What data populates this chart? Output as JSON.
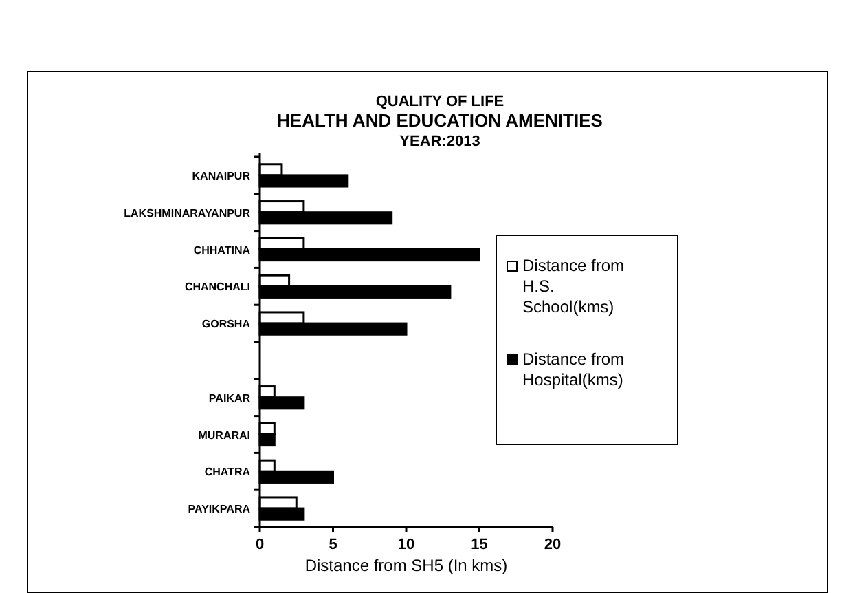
{
  "chart_data": {
    "type": "bar",
    "orientation": "horizontal",
    "title": "QUALITY OF LIFE",
    "subtitle": "HEALTH AND EDUCATION AMENITIES",
    "annotations": [
      "YEAR:2013"
    ],
    "xlabel": "Distance from SH5 (In kms)",
    "categories": [
      "KANAIPUR",
      "LAKSHMINARAYANPUR",
      "CHHATINA",
      "CHANCHALI",
      "GORSHA",
      null,
      "PAIKAR",
      "MURARAI",
      "CHATRA",
      "PAYIKPARA"
    ],
    "series": [
      {
        "name": "Distance from H.S. School(kms)",
        "color": "#ffffff",
        "values": [
          1.5,
          3,
          3,
          2,
          3,
          null,
          1,
          1,
          1,
          2.5
        ]
      },
      {
        "name": "Distance from Hospital(kms)",
        "color": "#000000",
        "values": [
          6,
          9,
          15,
          13,
          10,
          null,
          3,
          1,
          5,
          3
        ]
      }
    ],
    "xlim": [
      0,
      20
    ],
    "xticks": [
      0,
      5,
      10,
      15,
      20
    ],
    "grid": false,
    "legend": "right"
  }
}
